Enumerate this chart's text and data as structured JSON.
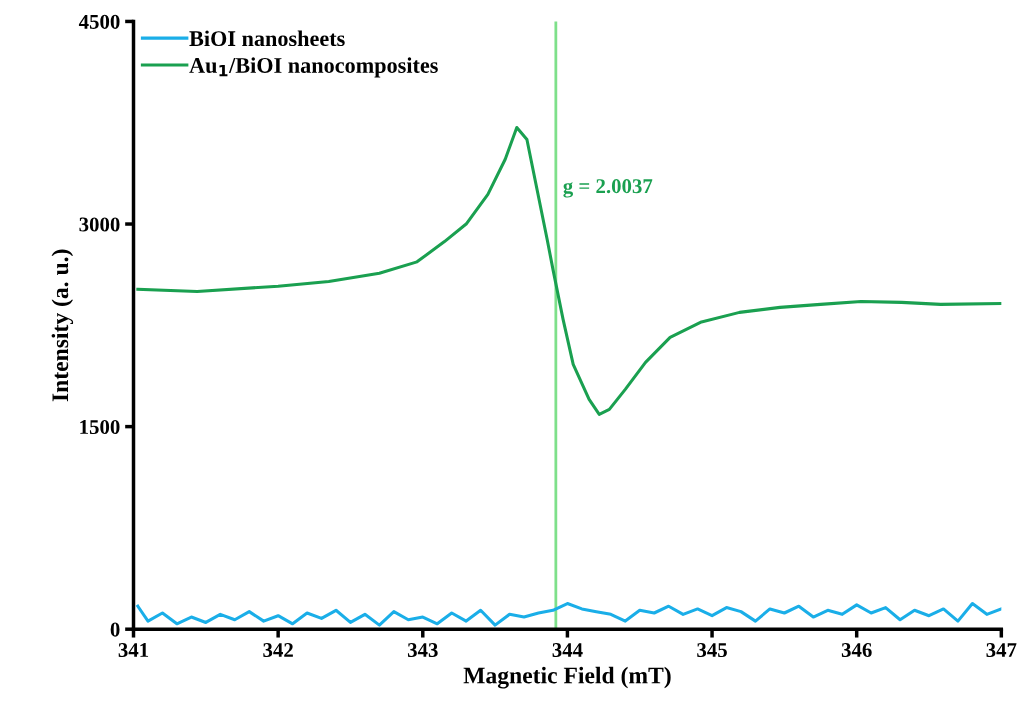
{
  "chart_data": {
    "type": "line",
    "xlabel": "Magnetic Field (mT)",
    "ylabel": "Intensity (a. u.)",
    "xlim": [
      341,
      347
    ],
    "ylim": [
      0,
      4500
    ],
    "xticks": [
      341,
      342,
      343,
      344,
      345,
      346,
      347
    ],
    "yticks": [
      0,
      1500,
      3000,
      4500
    ],
    "grid": false,
    "legend": "top left",
    "marker": "none",
    "line_style": "solid",
    "ref_lines": [
      {
        "axis": "x",
        "value": 343.92,
        "color": "#7ee08a"
      }
    ],
    "annotations": [
      "g = 2.0037"
    ],
    "series": [
      {
        "name": "BiOI nanosheets",
        "color": "#1aaee8",
        "x": [
          341.03,
          341.1,
          341.2,
          341.3,
          341.4,
          341.5,
          341.6,
          341.7,
          341.8,
          341.9,
          342.0,
          342.1,
          342.2,
          342.3,
          342.4,
          342.5,
          342.6,
          342.7,
          342.8,
          342.9,
          343.0,
          343.1,
          343.2,
          343.3,
          343.4,
          343.5,
          343.6,
          343.7,
          343.8,
          343.9,
          344.0,
          344.1,
          344.2,
          344.3,
          344.4,
          344.5,
          344.6,
          344.7,
          344.8,
          344.9,
          345.0,
          345.1,
          345.2,
          345.3,
          345.4,
          345.5,
          345.6,
          345.7,
          345.8,
          345.9,
          346.0,
          346.1,
          346.2,
          346.3,
          346.4,
          346.5,
          346.6,
          346.7,
          346.8,
          346.9,
          347.0
        ],
        "values": [
          170,
          60,
          120,
          40,
          90,
          50,
          110,
          70,
          130,
          60,
          100,
          40,
          120,
          80,
          140,
          50,
          110,
          30,
          130,
          70,
          90,
          40,
          120,
          60,
          140,
          30,
          110,
          90,
          120,
          140,
          190,
          150,
          130,
          110,
          60,
          140,
          120,
          170,
          110,
          150,
          100,
          160,
          130,
          60,
          150,
          120,
          170,
          90,
          140,
          110,
          180,
          120,
          160,
          70,
          140,
          100,
          150,
          60,
          190,
          110,
          150
        ]
      },
      {
        "name": "Au$_{1}$/BiOI nanocomposites",
        "color": "#1aa050",
        "x": [
          341.03,
          341.44,
          342.0,
          342.35,
          342.7,
          342.96,
          343.15,
          343.3,
          343.45,
          343.57,
          343.65,
          343.72,
          343.79,
          343.86,
          343.9,
          343.97,
          344.04,
          344.15,
          344.22,
          344.29,
          344.4,
          344.54,
          344.71,
          344.92,
          345.19,
          345.47,
          345.75,
          346.03,
          346.31,
          346.58,
          347.0
        ],
        "values": [
          2516,
          2500,
          2540,
          2575,
          2635,
          2720,
          2870,
          3000,
          3220,
          3480,
          3715,
          3626,
          3256,
          2886,
          2664,
          2294,
          1961,
          1702,
          1591,
          1628,
          1776,
          1976,
          2161,
          2272,
          2346,
          2383,
          2405,
          2427,
          2420,
          2405,
          2412
        ]
      }
    ]
  }
}
